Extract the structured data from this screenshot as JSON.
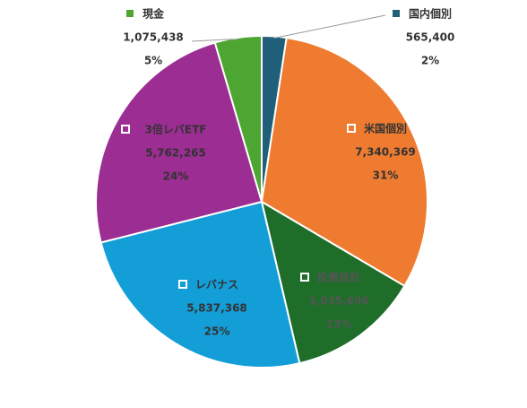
{
  "chart_data": {
    "type": "pie",
    "title": "",
    "slices": [
      {
        "label": "国内個別",
        "value": 565400,
        "value_text": "565,400",
        "percent_text": "2%",
        "color": "#1f5f7a"
      },
      {
        "label": "米国個別",
        "value": 7340369,
        "value_text": "7,340,369",
        "percent_text": "31%",
        "color": "#ee7b30"
      },
      {
        "label": "投資信託",
        "value": 3035696,
        "value_text": "3,035,696",
        "percent_text": "13%",
        "color": "#1e6e2a"
      },
      {
        "label": "レバナス",
        "value": 5837368,
        "value_text": "5,837,368",
        "percent_text": "25%",
        "color": "#139ed8"
      },
      {
        "label": "3倍レバETF",
        "value": 5762265,
        "value_text": "5,762,265",
        "percent_text": "24%",
        "color": "#9b2d93"
      },
      {
        "label": "現金",
        "value": 1075438,
        "value_text": "1,075,438",
        "percent_text": "5%",
        "color": "#4da631"
      }
    ],
    "legend": "data-labels-with-markers",
    "label_colors": {
      "inside_default": "#333333",
      "inside_muted": "#555555",
      "outside": "#333333"
    }
  }
}
